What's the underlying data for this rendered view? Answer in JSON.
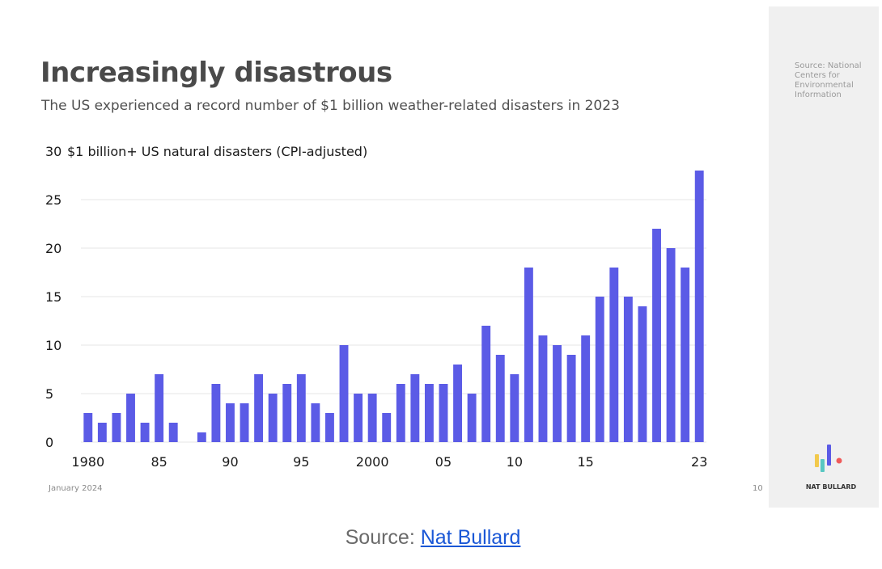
{
  "slide": {
    "title": "Increasingly disastrous",
    "subtitle": "The US experienced a record number of $1 billion weather-related disasters in 2023",
    "footer_date": "January 2024",
    "page_number": "10",
    "side_source": "Source: National Centers for Environmental Information",
    "logo_text": "NAT BULLARD",
    "logo_icon": "bar-chart-logo-icon"
  },
  "credit": {
    "prefix": "Source: ",
    "link_text": "Nat Bullard"
  },
  "colors": {
    "bar": "#5b5be6",
    "grid": "#e6e6e6",
    "logo_yellow": "#f2c94c",
    "logo_teal": "#58c7c2",
    "logo_purple": "#5b5be6",
    "logo_red": "#ef5a5a",
    "link": "#1a57d6"
  },
  "chart_data": {
    "type": "bar",
    "ylabel": "$1 billion+ US natural disasters (CPI-adjusted)",
    "ylim": [
      0,
      30
    ],
    "yticks": [
      0,
      5,
      10,
      15,
      20,
      25,
      30
    ],
    "grid": true,
    "categories": [
      1980,
      1981,
      1982,
      1983,
      1984,
      1985,
      1986,
      1987,
      1988,
      1989,
      1990,
      1991,
      1992,
      1993,
      1994,
      1995,
      1996,
      1997,
      1998,
      1999,
      2000,
      2001,
      2002,
      2003,
      2004,
      2005,
      2006,
      2007,
      2008,
      2009,
      2010,
      2011,
      2012,
      2013,
      2014,
      2015,
      2016,
      2017,
      2018,
      2019,
      2020,
      2021,
      2022,
      2023
    ],
    "values": [
      3,
      2,
      3,
      5,
      2,
      7,
      2,
      0,
      1,
      6,
      4,
      4,
      7,
      5,
      6,
      7,
      4,
      3,
      10,
      5,
      5,
      3,
      6,
      7,
      6,
      6,
      8,
      5,
      12,
      9,
      7,
      18,
      11,
      10,
      9,
      11,
      15,
      18,
      15,
      14,
      22,
      20,
      18,
      28
    ],
    "xtick_labels": [
      {
        "year": 1980,
        "label": "1980"
      },
      {
        "year": 1985,
        "label": "85"
      },
      {
        "year": 1990,
        "label": "90"
      },
      {
        "year": 1995,
        "label": "95"
      },
      {
        "year": 2000,
        "label": "2000"
      },
      {
        "year": 2005,
        "label": "05"
      },
      {
        "year": 2010,
        "label": "10"
      },
      {
        "year": 2015,
        "label": "15"
      },
      {
        "year": 2023,
        "label": "23"
      }
    ]
  }
}
